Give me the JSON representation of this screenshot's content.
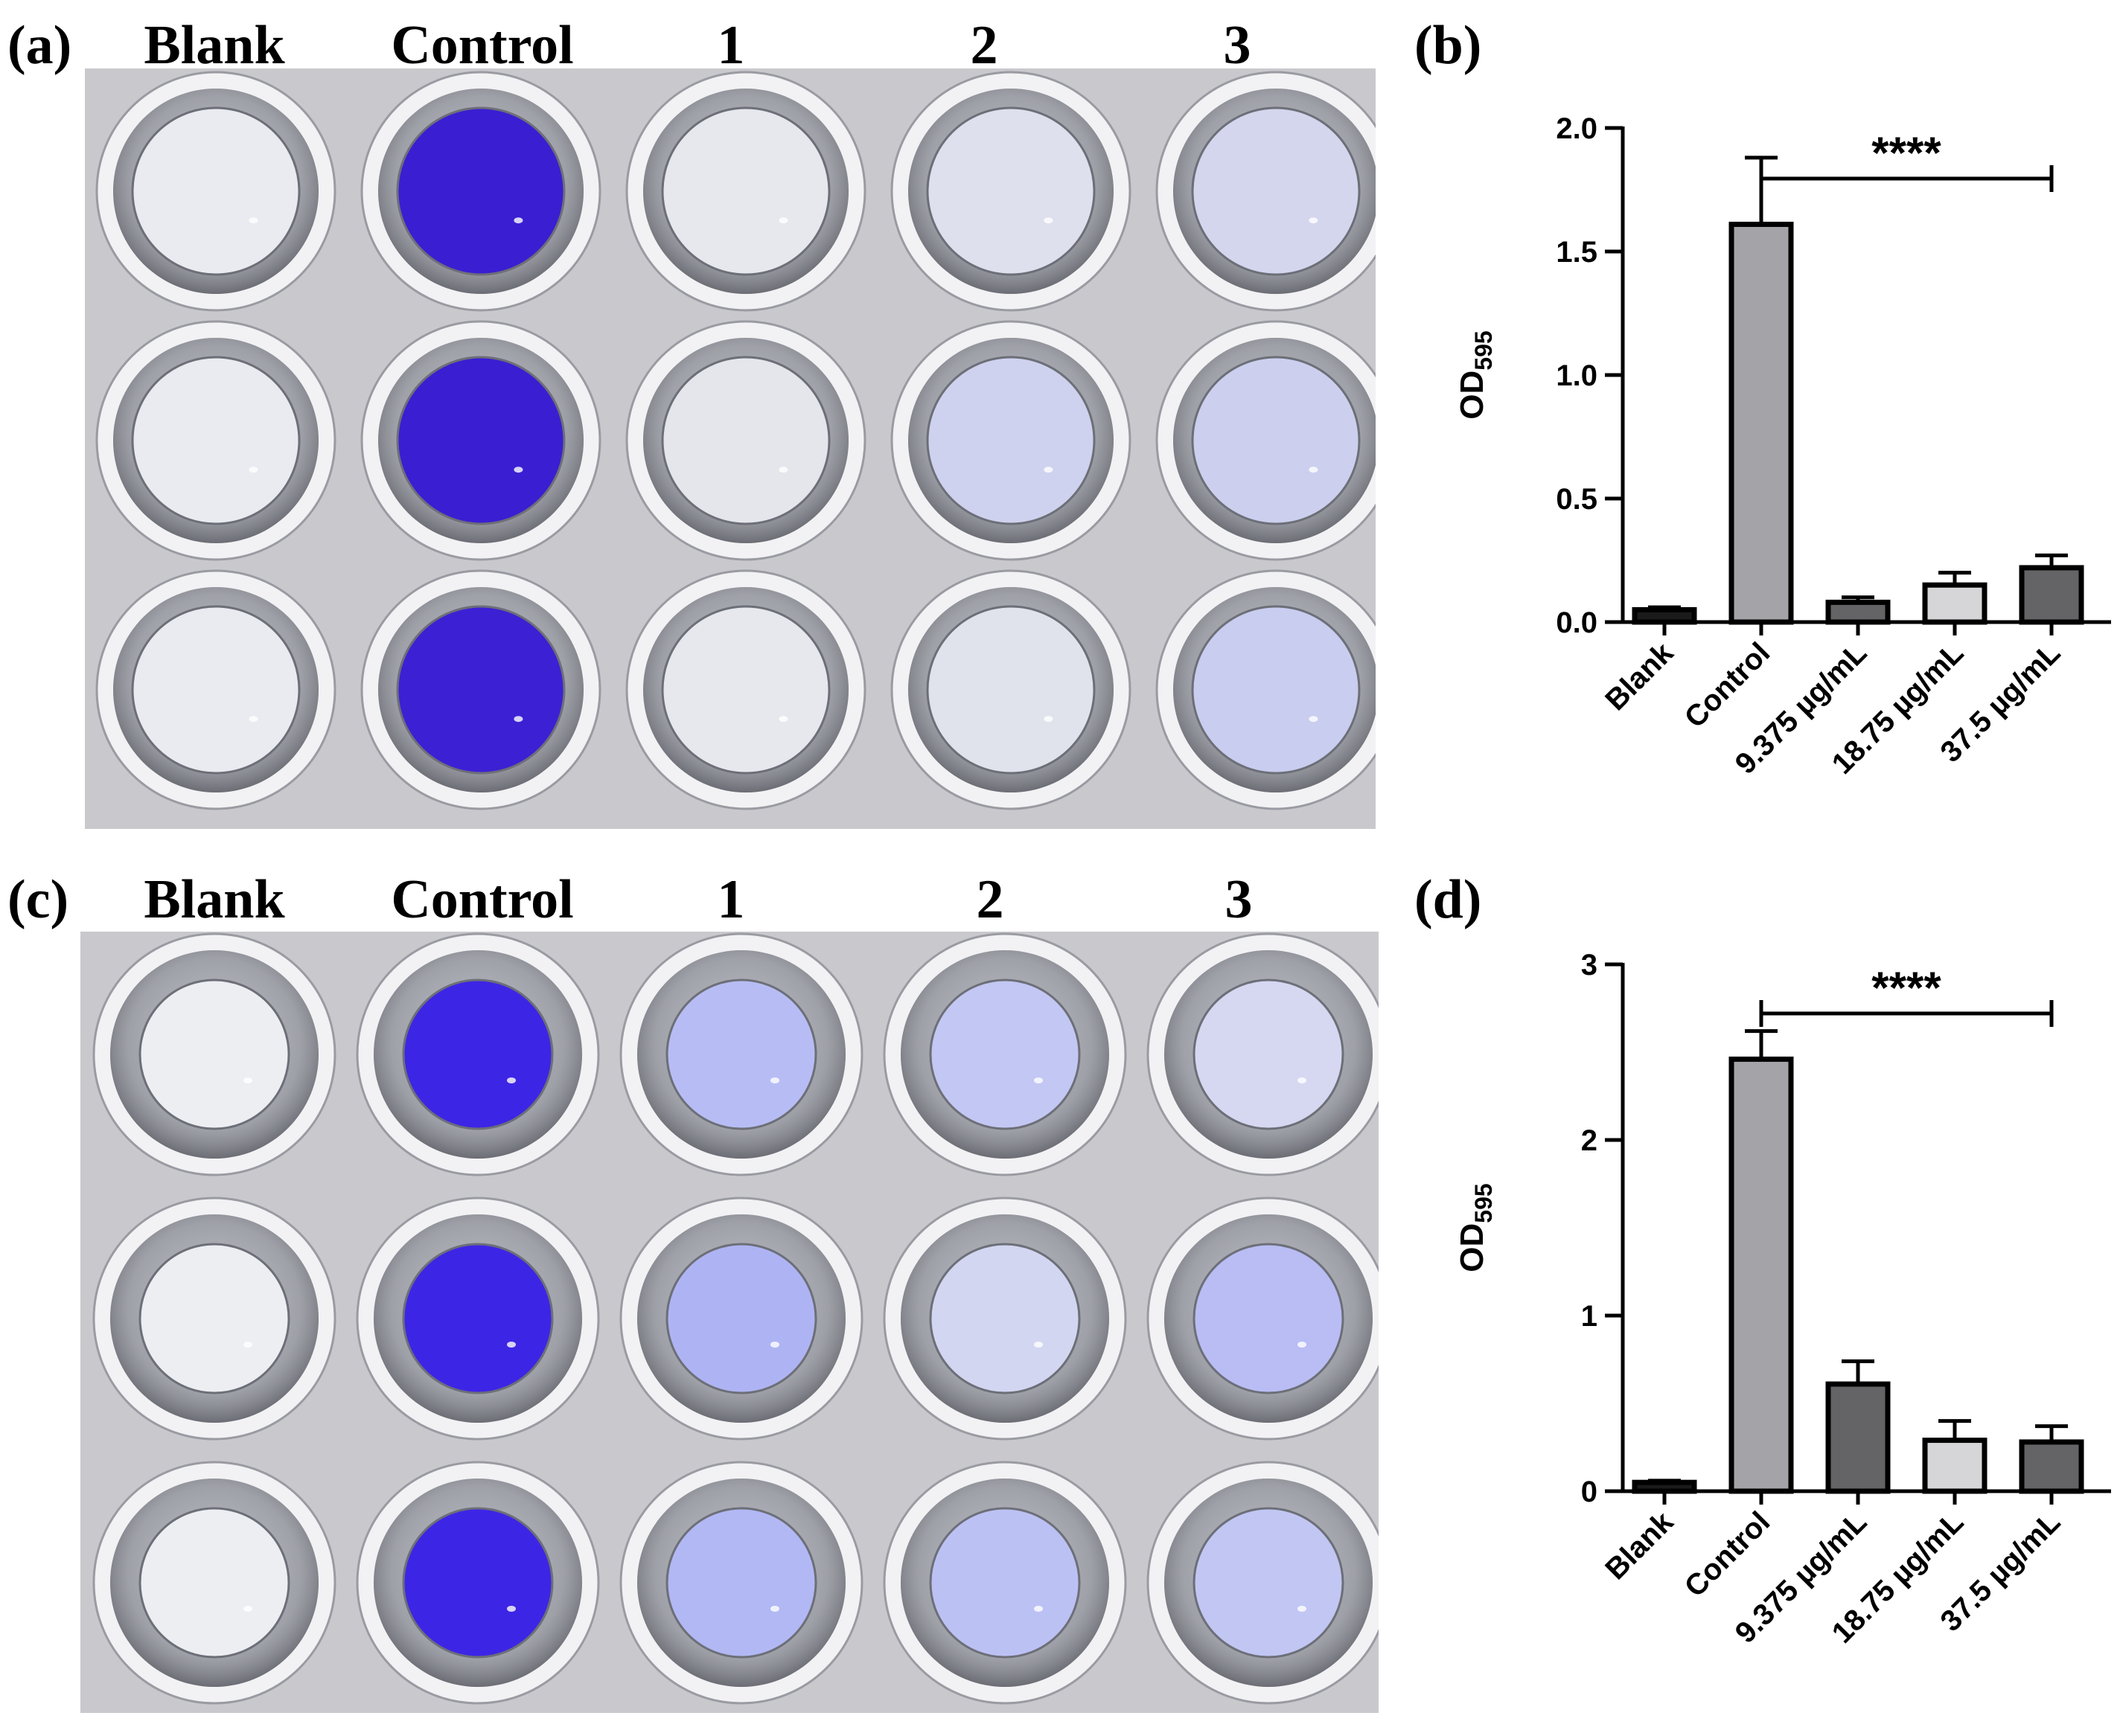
{
  "panels": {
    "a": {
      "letter": "(a)",
      "columns": [
        "Blank",
        "Control",
        "1",
        "2",
        "3"
      ]
    },
    "b": {
      "letter": "(b)"
    },
    "c": {
      "letter": "(c)",
      "columns": [
        "Blank",
        "Control",
        "1",
        "2",
        "3"
      ]
    },
    "d": {
      "letter": "(d)"
    }
  },
  "colors": {
    "plate_bg": "#c9c9cd",
    "well_rim": "#f2f2f4",
    "well_empty": "#eceef2",
    "crystal_violet": "#3c1fd0",
    "light_stain": "#b9bdf0",
    "bar_control": "#a3a3a8",
    "bar_dark": "#646466",
    "bar_light": "#d6d6d8",
    "bar_blank": "#1a1a1a"
  },
  "plates": {
    "a": {
      "rows": 3,
      "well_fill": [
        [
          "#e9ebf0",
          "#3a1ed2",
          "#e6e8ee",
          "#dfe0ee",
          "#d4d6ee"
        ],
        [
          "#e9ebf0",
          "#3a1ed2",
          "#e4e6ec",
          "#cfd2ee",
          "#ccd0ee"
        ],
        [
          "#e9ebf0",
          "#3c20d4",
          "#e6e8ee",
          "#e1e3ec",
          "#c9cdef"
        ]
      ]
    },
    "c": {
      "rows": 3,
      "well_fill": [
        [
          "#eceef2",
          "#3d25e6",
          "#b7bdf4",
          "#c3c7f3",
          "#d6d8f2"
        ],
        [
          "#eceef2",
          "#3d25e6",
          "#aeb4f3",
          "#d3d6f1",
          "#b9bdf4"
        ],
        [
          "#eceef2",
          "#3d25e6",
          "#b1b8f4",
          "#bcc1f4",
          "#c1c6f3"
        ]
      ]
    }
  },
  "chart_data": [
    {
      "panel": "b",
      "type": "bar",
      "categories": [
        "Blank",
        "Control",
        "9.375 µg/mL",
        "18.75 µg/mL",
        "37.5 µg/mL"
      ],
      "values": [
        0.05,
        1.61,
        0.08,
        0.15,
        0.22
      ],
      "errors": [
        0.01,
        0.27,
        0.02,
        0.05,
        0.05
      ],
      "bar_colors": [
        "#1a1a1a",
        "#a3a3a8",
        "#646466",
        "#d6d6d8",
        "#646466"
      ],
      "ylabel": "OD",
      "ylabel_sub": "595",
      "ylim": [
        0,
        2.0
      ],
      "yticks": [
        "0.0",
        "0.5",
        "1.0",
        "1.5",
        "2.0"
      ],
      "ytick_values": [
        0,
        0.5,
        1.0,
        1.5,
        2.0
      ],
      "significance": {
        "label": "****",
        "from": "Control",
        "to": "37.5 µg/mL"
      }
    },
    {
      "panel": "d",
      "type": "bar",
      "categories": [
        "Blank",
        "Control",
        "9.375 µg/mL",
        "18.75 µg/mL",
        "37.5 µg/mL"
      ],
      "values": [
        0.05,
        2.46,
        0.61,
        0.29,
        0.28
      ],
      "errors": [
        0.01,
        0.16,
        0.13,
        0.11,
        0.09
      ],
      "bar_colors": [
        "#1a1a1a",
        "#a3a3a8",
        "#646466",
        "#d6d6d8",
        "#646466"
      ],
      "ylabel": "OD",
      "ylabel_sub": "595",
      "ylim": [
        0,
        3
      ],
      "yticks": [
        "0",
        "1",
        "2",
        "3"
      ],
      "ytick_values": [
        0,
        1,
        2,
        3
      ],
      "significance": {
        "label": "****",
        "from": "Control",
        "to": "37.5 µg/mL"
      }
    }
  ]
}
